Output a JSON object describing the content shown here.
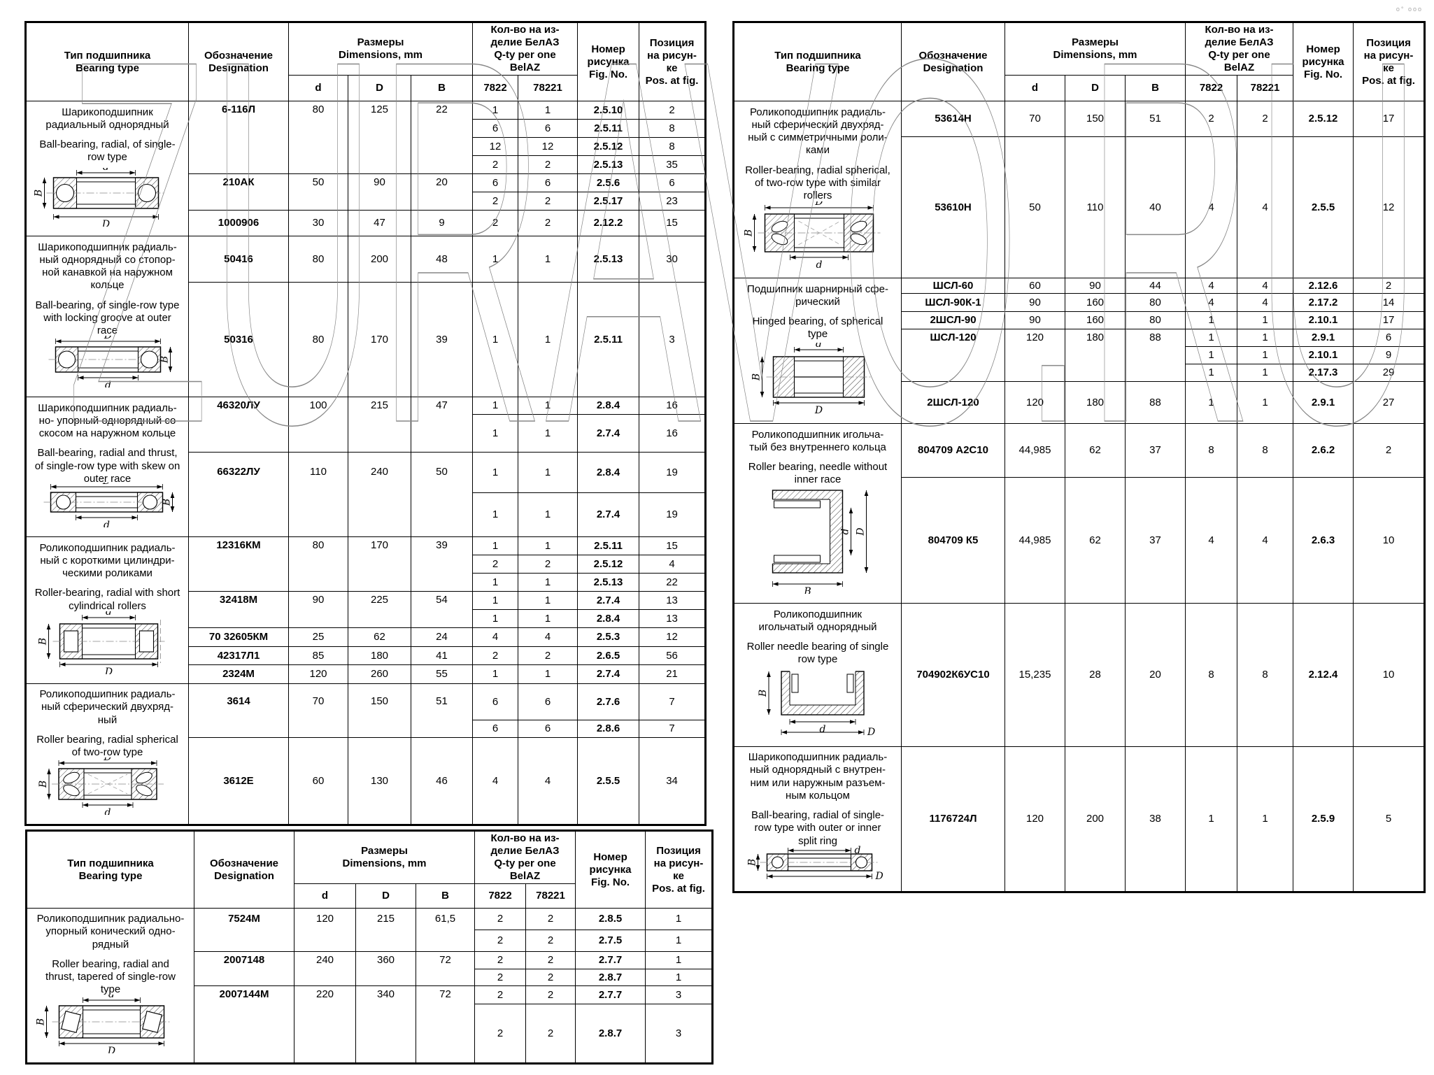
{
  "watermark": {
    "text": "ZURAVO.RU",
    "color": "#878787"
  },
  "corner_mark": "o° ooo",
  "headers": {
    "type": "Тип подшипника\nBearing type",
    "designation": "Обозначение\nDesignation",
    "dimensions": "Размеры\nDimensions, mm",
    "qty": "Кол-во на из-\nделие БелАЗ\nQ-ty per one\nBelAZ",
    "fig": "Номер\nрисунка\nFig. No.",
    "pos": "Позиция\nна рисун-\nке\nPos. at fig.",
    "sub": {
      "d": "d",
      "D": "D",
      "B": "B",
      "q1": "7822",
      "q2": "78221"
    }
  },
  "tables": [
    {
      "id": "left",
      "sections": [
        {
          "type_ru": "Шарикоподшипник\nрадиальный однорядный",
          "type_en": "Ball-bearing, radial, of single-\nrow type",
          "diagram": "ball-radial",
          "groups": [
            {
              "designation": "6-116Л",
              "d": "80",
              "D": "125",
              "B": "22",
              "rows": [
                {
                  "q1": "1",
                  "q2": "1",
                  "fig": "2.5.10",
                  "pos": "2"
                },
                {
                  "q1": "6",
                  "q2": "6",
                  "fig": "2.5.11",
                  "pos": "8"
                },
                {
                  "q1": "12",
                  "q2": "12",
                  "fig": "2.5.12",
                  "pos": "8"
                },
                {
                  "q1": "2",
                  "q2": "2",
                  "fig": "2.5.13",
                  "pos": "35"
                }
              ]
            },
            {
              "designation": "210АК",
              "d": "50",
              "D": "90",
              "B": "20",
              "rows": [
                {
                  "q1": "6",
                  "q2": "6",
                  "fig": "2.5.6",
                  "pos": "6"
                },
                {
                  "q1": "2",
                  "q2": "2",
                  "fig": "2.5.17",
                  "pos": "23"
                }
              ]
            },
            {
              "designation": "1000906",
              "d": "30",
              "D": "47",
              "B": "9",
              "rows": [
                {
                  "q1": "2",
                  "q2": "2",
                  "fig": "2.12.2",
                  "pos": "15"
                }
              ]
            }
          ]
        },
        {
          "type_ru": "Шарикоподшипник радиаль-\nный однорядный со стопор-\nной канавкой на наружном\nкольце",
          "type_en": "Ball-bearing, of single-row type\nwith locking groove at outer\nrace",
          "diagram": "ball-locking-groove",
          "groups": [
            {
              "designation": "50416",
              "d": "80",
              "D": "200",
              "B": "48",
              "rows": [
                {
                  "q1": "1",
                  "q2": "1",
                  "fig": "2.5.13",
                  "pos": "30"
                }
              ]
            },
            {
              "designation": "50316",
              "d": "80",
              "D": "170",
              "B": "39",
              "rows": [
                {
                  "q1": "1",
                  "q2": "1",
                  "fig": "2.5.11",
                  "pos": "3"
                }
              ]
            }
          ]
        },
        {
          "type_ru": "Шарикоподшипник радиаль-\nно- упорный однорядный со\nскосом на наружном кольце",
          "type_en": "Ball-bearing, radial and thrust,\nof single-row type with skew on\nouter race",
          "diagram": "ball-radial-thrust",
          "groups": [
            {
              "designation": "46320ЛУ",
              "d": "100",
              "D": "215",
              "B": "47",
              "rows": [
                {
                  "q1": "1",
                  "q2": "1",
                  "fig": "2.8.4",
                  "pos": "16"
                },
                {
                  "q1": "1",
                  "q2": "1",
                  "fig": "2.7.4",
                  "pos": "16"
                }
              ]
            },
            {
              "designation": "66322ЛУ",
              "d": "110",
              "D": "240",
              "B": "50",
              "rows": [
                {
                  "q1": "1",
                  "q2": "1",
                  "fig": "2.8.4",
                  "pos": "19"
                },
                {
                  "q1": "1",
                  "q2": "1",
                  "fig": "2.7.4",
                  "pos": "19"
                }
              ]
            }
          ]
        },
        {
          "type_ru": "Роликоподшипник радиаль-\nный с короткими цилиндри-\nческими роликами",
          "type_en": "Roller-bearing, radial with short\ncylindrical rollers",
          "diagram": "roller-cylindrical",
          "groups": [
            {
              "designation": "12316КМ",
              "d": "80",
              "D": "170",
              "B": "39",
              "rows": [
                {
                  "q1": "1",
                  "q2": "1",
                  "fig": "2.5.11",
                  "pos": "15"
                },
                {
                  "q1": "2",
                  "q2": "2",
                  "fig": "2.5.12",
                  "pos": "4"
                },
                {
                  "q1": "1",
                  "q2": "1",
                  "fig": "2.5.13",
                  "pos": "22"
                }
              ]
            },
            {
              "designation": "32418М",
              "d": "90",
              "D": "225",
              "B": "54",
              "rows": [
                {
                  "q1": "1",
                  "q2": "1",
                  "fig": "2.7.4",
                  "pos": "13"
                },
                {
                  "q1": "1",
                  "q2": "1",
                  "fig": "2.8.4",
                  "pos": "13"
                }
              ]
            },
            {
              "designation": "70 32605КМ",
              "d": "25",
              "D": "62",
              "B": "24",
              "rows": [
                {
                  "q1": "4",
                  "q2": "4",
                  "fig": "2.5.3",
                  "pos": "12"
                }
              ]
            },
            {
              "designation": "42317Л1",
              "d": "85",
              "D": "180",
              "B": "41",
              "rows": [
                {
                  "q1": "2",
                  "q2": "2",
                  "fig": "2.6.5",
                  "pos": "56"
                }
              ]
            },
            {
              "designation": "2324М",
              "d": "120",
              "D": "260",
              "B": "55",
              "rows": [
                {
                  "q1": "1",
                  "q2": "1",
                  "fig": "2.7.4",
                  "pos": "21"
                }
              ]
            }
          ]
        },
        {
          "type_ru": "Роликоподшипник радиаль-\nный сферический двухряд-\nный",
          "type_en": "Roller bearing, radial spherical\nof two-row type",
          "diagram": "roller-spherical",
          "groups": [
            {
              "designation": "3614",
              "d": "70",
              "D": "150",
              "B": "51",
              "rows": [
                {
                  "q1": "6",
                  "q2": "6",
                  "fig": "2.7.6",
                  "pos": "7"
                },
                {
                  "q1": "6",
                  "q2": "6",
                  "fig": "2.8.6",
                  "pos": "7"
                }
              ]
            },
            {
              "designation": "3612Е",
              "d": "60",
              "D": "130",
              "B": "46",
              "rows": [
                {
                  "q1": "4",
                  "q2": "4",
                  "fig": "2.5.5",
                  "pos": "34"
                }
              ]
            }
          ]
        }
      ]
    },
    {
      "id": "right",
      "sections": [
        {
          "type_ru": "Роликоподшипник радиаль-\nный сферический двухряд-\nный с симметричными роли-\nками",
          "type_en": "Roller-bearing, radial spherical,\nof two-row type with similar\nrollers",
          "diagram": "roller-spherical-symmetric",
          "groups": [
            {
              "designation": "53614Н",
              "d": "70",
              "D": "150",
              "B": "51",
              "rows": [
                {
                  "q1": "2",
                  "q2": "2",
                  "fig": "2.5.12",
                  "pos": "17"
                }
              ]
            },
            {
              "designation": "53610Н",
              "d": "50",
              "D": "110",
              "B": "40",
              "rows": [
                {
                  "q1": "4",
                  "q2": "4",
                  "fig": "2.5.5",
                  "pos": "12"
                }
              ]
            }
          ]
        },
        {
          "type_ru": "Подшипник шарнирный сфе-\nрический",
          "type_en": "Hinged bearing, of spherical\ntype",
          "diagram": "hinged-spherical",
          "groups": [
            {
              "designation": "ШСЛ-60",
              "d": "60",
              "D": "90",
              "B": "44",
              "rows": [
                {
                  "q1": "4",
                  "q2": "4",
                  "fig": "2.12.6",
                  "pos": "2"
                }
              ]
            },
            {
              "designation": "ШСЛ-90К-1",
              "d": "90",
              "D": "160",
              "B": "80",
              "rows": [
                {
                  "q1": "4",
                  "q2": "4",
                  "fig": "2.17.2",
                  "pos": "14"
                }
              ]
            },
            {
              "designation": "2ШСЛ-90",
              "d": "90",
              "D": "160",
              "B": "80",
              "rows": [
                {
                  "q1": "1",
                  "q2": "1",
                  "fig": "2.10.1",
                  "pos": "17"
                }
              ]
            },
            {
              "designation": "ШСЛ-120",
              "d": "120",
              "D": "180",
              "B": "88",
              "rows": [
                {
                  "q1": "1",
                  "q2": "1",
                  "fig": "2.9.1",
                  "pos": "6"
                },
                {
                  "q1": "1",
                  "q2": "1",
                  "fig": "2.10.1",
                  "pos": "9"
                },
                {
                  "q1": "1",
                  "q2": "1",
                  "fig": "2.17.3",
                  "pos": "29"
                }
              ]
            },
            {
              "designation": "2ШСЛ-120",
              "d": "120",
              "D": "180",
              "B": "88",
              "rows": [
                {
                  "q1": "1",
                  "q2": "1",
                  "fig": "2.9.1",
                  "pos": "27"
                }
              ]
            }
          ]
        },
        {
          "type_ru": "Роликоподшипник игольча-\nтый без внутреннего кольца",
          "type_en": "Roller bearing, needle without\ninner race",
          "diagram": "needle-no-inner-race",
          "groups": [
            {
              "designation": "804709 А2С10",
              "d": "44,985",
              "D": "62",
              "B": "37",
              "rows": [
                {
                  "q1": "8",
                  "q2": "8",
                  "fig": "2.6.2",
                  "pos": "2"
                }
              ]
            },
            {
              "designation": "804709 К5",
              "d": "44,985",
              "D": "62",
              "B": "37",
              "rows": [
                {
                  "q1": "4",
                  "q2": "4",
                  "fig": "2.6.3",
                  "pos": "10"
                }
              ]
            }
          ]
        },
        {
          "type_ru": "Роликоподшипник\nигольчатый однорядный",
          "type_en": "Roller needle bearing of single\nrow type",
          "diagram": "needle-single-row",
          "groups": [
            {
              "designation": "704902К6УС10",
              "d": "15,235",
              "D": "28",
              "B": "20",
              "rows": [
                {
                  "q1": "8",
                  "q2": "8",
                  "fig": "2.12.4",
                  "pos": "10"
                }
              ]
            }
          ]
        },
        {
          "type_ru": "Шарикоподшипник радиаль-\nный однорядный с внутрен-\nним или наружным разъем-\nным кольцом",
          "type_en": "Ball-bearing, radial of single-\nrow type with outer or inner\nsplit ring",
          "diagram": "ball-split-ring",
          "groups": [
            {
              "designation": "1176724Л",
              "d": "120",
              "D": "200",
              "B": "38",
              "rows": [
                {
                  "q1": "1",
                  "q2": "1",
                  "fig": "2.5.9",
                  "pos": "5"
                }
              ]
            }
          ]
        }
      ]
    },
    {
      "id": "bottom",
      "sections": [
        {
          "type_ru": "Роликоподшипник радиально-\nупорный конический одно-\nрядный",
          "type_en": "Roller bearing, radial and\nthrust, tapered of single-row\ntype",
          "diagram": "roller-tapered",
          "groups": [
            {
              "designation": "7524М",
              "d": "120",
              "D": "215",
              "B": "61,5",
              "rows": [
                {
                  "q1": "2",
                  "q2": "2",
                  "fig": "2.8.5",
                  "pos": "1"
                },
                {
                  "q1": "2",
                  "q2": "2",
                  "fig": "2.7.5",
                  "pos": "1"
                }
              ]
            },
            {
              "designation": "2007148",
              "d": "240",
              "D": "360",
              "B": "72",
              "rows": [
                {
                  "q1": "2",
                  "q2": "2",
                  "fig": "2.7.7",
                  "pos": "1"
                },
                {
                  "q1": "2",
                  "q2": "2",
                  "fig": "2.8.7",
                  "pos": "1"
                }
              ]
            },
            {
              "designation": "2007144М",
              "d": "220",
              "D": "340",
              "B": "72",
              "rows": [
                {
                  "q1": "2",
                  "q2": "2",
                  "fig": "2.7.7",
                  "pos": "3"
                },
                {
                  "q1": "2",
                  "q2": "2",
                  "fig": "2.8.7",
                  "pos": "3"
                }
              ]
            }
          ]
        }
      ]
    }
  ]
}
